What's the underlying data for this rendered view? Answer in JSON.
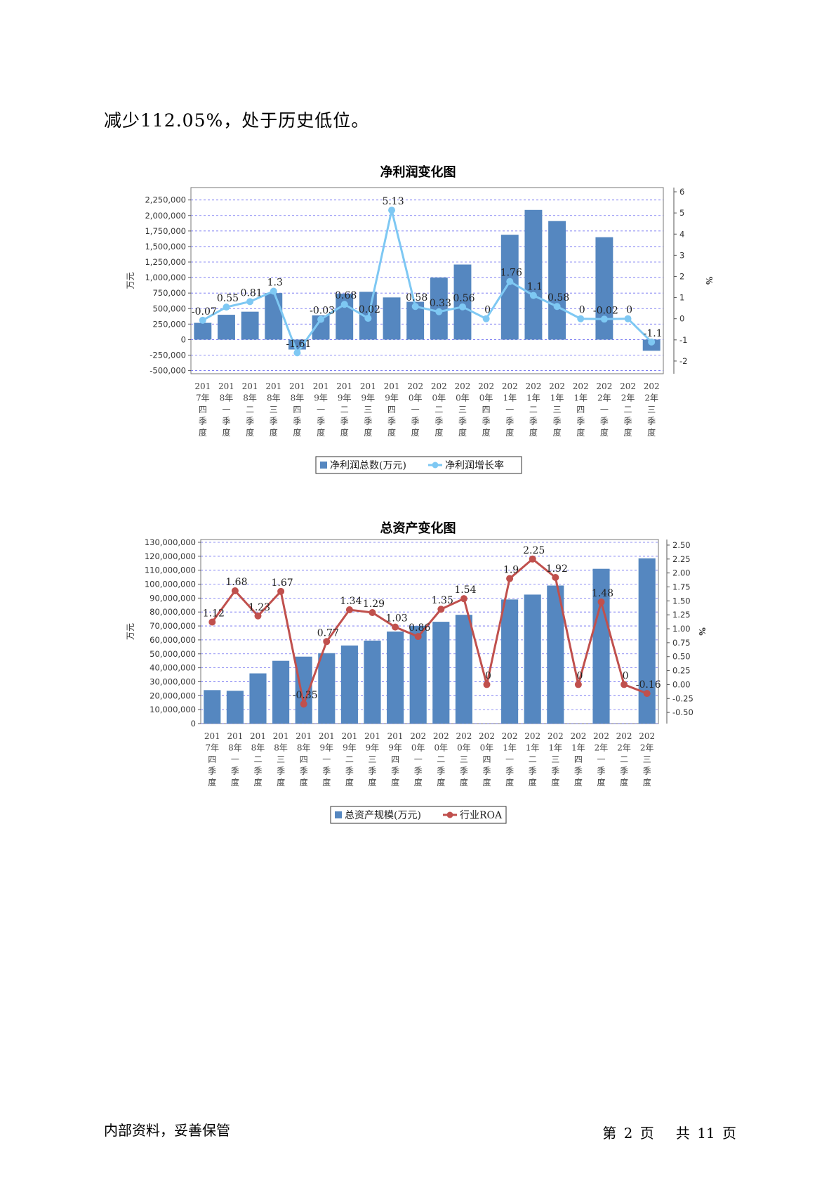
{
  "intro_text": "减少112.05%，处于历史低位。",
  "footer": {
    "left": "内部资料，妥善保管",
    "page_prefix": "第",
    "page_no": "2",
    "page_mid": "页",
    "total_prefix": "共",
    "total_no": "11",
    "page_suffix": "页"
  },
  "chart_data": [
    {
      "type": "bar",
      "title": "净利润变化图",
      "ylabel": "万元",
      "y2label": "%",
      "bar_color": "#5587c0",
      "line_color": "#7ec8f3",
      "categories": [
        [
          "201",
          "7年",
          "四",
          "季",
          "度"
        ],
        [
          "201",
          "8年",
          "一",
          "季",
          "度"
        ],
        [
          "201",
          "8年",
          "二",
          "季",
          "度"
        ],
        [
          "201",
          "8年",
          "三",
          "季",
          "度"
        ],
        [
          "201",
          "8年",
          "四",
          "季",
          "度"
        ],
        [
          "201",
          "9年",
          "一",
          "季",
          "度"
        ],
        [
          "201",
          "9年",
          "二",
          "季",
          "度"
        ],
        [
          "201",
          "9年",
          "三",
          "季",
          "度"
        ],
        [
          "201",
          "9年",
          "四",
          "季",
          "度"
        ],
        [
          "202",
          "0年",
          "一",
          "季",
          "度"
        ],
        [
          "202",
          "0年",
          "二",
          "季",
          "度"
        ],
        [
          "202",
          "0年",
          "三",
          "季",
          "度"
        ],
        [
          "202",
          "0年",
          "四",
          "季",
          "度"
        ],
        [
          "202",
          "1年",
          "一",
          "季",
          "度"
        ],
        [
          "202",
          "1年",
          "二",
          "季",
          "度"
        ],
        [
          "202",
          "1年",
          "三",
          "季",
          "度"
        ],
        [
          "202",
          "1年",
          "四",
          "季",
          "度"
        ],
        [
          "202",
          "2年",
          "一",
          "季",
          "度"
        ],
        [
          "202",
          "2年",
          "二",
          "季",
          "度"
        ],
        [
          "202",
          "2年",
          "三",
          "季",
          "度"
        ]
      ],
      "yticks": [
        -500000,
        -250000,
        0,
        250000,
        500000,
        750000,
        1000000,
        1250000,
        1500000,
        1750000,
        2000000,
        2250000
      ],
      "ytick_labels": [
        "-500,000",
        "-250,000",
        "0",
        "250,000",
        "500,000",
        "750,000",
        "1,000,000",
        "1,250,000",
        "1,500,000",
        "1,750,000",
        "2,000,000",
        "2,250,000"
      ],
      "ylim": [
        -550000,
        2450000
      ],
      "y2ticks": [
        -2,
        -1,
        0,
        1,
        2,
        3,
        4,
        5,
        6
      ],
      "y2tick_labels": [
        "-2",
        "-1",
        "0",
        "1",
        "2",
        "3",
        "4",
        "5",
        "6"
      ],
      "y2lim": [
        -2.6,
        6.2
      ],
      "series": [
        {
          "name": "净利润总数(万元)",
          "kind": "bar",
          "axis": "left",
          "values": [
            270000,
            400000,
            450000,
            750000,
            -160000,
            390000,
            740000,
            770000,
            680000,
            610000,
            1000000,
            1210000,
            0,
            1690000,
            2090000,
            1910000,
            0,
            1650000,
            0,
            -180000
          ]
        },
        {
          "name": "净利润增长率",
          "kind": "line",
          "axis": "right",
          "values": [
            -0.07,
            0.55,
            0.81,
            1.3,
            -1.61,
            -0.03,
            0.68,
            0.02,
            5.13,
            0.58,
            0.33,
            0.56,
            0,
            1.76,
            1.1,
            0.58,
            0,
            -0.02,
            0,
            -1.1
          ],
          "labels": [
            "-0.07",
            "0.55",
            "0.81",
            "1.3",
            "-1.61",
            "-0.03",
            "0.68",
            "0.02",
            "5.13",
            "0.58",
            "0.33",
            "0.56",
            "0",
            "1.76",
            "1.1",
            "0.58",
            "0",
            "-0.02",
            "0",
            "-1.1"
          ]
        }
      ]
    },
    {
      "type": "bar",
      "title": "总资产变化图",
      "ylabel": "万元",
      "y2label": "%",
      "bar_color": "#5587c0",
      "line_color": "#c0504d",
      "categories": [
        [
          "201",
          "7年",
          "四",
          "季",
          "度"
        ],
        [
          "201",
          "8年",
          "一",
          "季",
          "度"
        ],
        [
          "201",
          "8年",
          "二",
          "季",
          "度"
        ],
        [
          "201",
          "8年",
          "三",
          "季",
          "度"
        ],
        [
          "201",
          "8年",
          "四",
          "季",
          "度"
        ],
        [
          "201",
          "9年",
          "一",
          "季",
          "度"
        ],
        [
          "201",
          "9年",
          "二",
          "季",
          "度"
        ],
        [
          "201",
          "9年",
          "三",
          "季",
          "度"
        ],
        [
          "201",
          "9年",
          "四",
          "季",
          "度"
        ],
        [
          "202",
          "0年",
          "一",
          "季",
          "度"
        ],
        [
          "202",
          "0年",
          "二",
          "季",
          "度"
        ],
        [
          "202",
          "0年",
          "三",
          "季",
          "度"
        ],
        [
          "202",
          "0年",
          "四",
          "季",
          "度"
        ],
        [
          "202",
          "1年",
          "一",
          "季",
          "度"
        ],
        [
          "202",
          "1年",
          "二",
          "季",
          "度"
        ],
        [
          "202",
          "1年",
          "三",
          "季",
          "度"
        ],
        [
          "202",
          "1年",
          "四",
          "季",
          "度"
        ],
        [
          "202",
          "2年",
          "一",
          "季",
          "度"
        ],
        [
          "202",
          "2年",
          "二",
          "季",
          "度"
        ],
        [
          "202",
          "2年",
          "三",
          "季",
          "度"
        ]
      ],
      "yticks": [
        0,
        10000000,
        20000000,
        30000000,
        40000000,
        50000000,
        60000000,
        70000000,
        80000000,
        90000000,
        100000000,
        110000000,
        120000000,
        130000000
      ],
      "ytick_labels": [
        "0",
        "10,000,000",
        "20,000,000",
        "30,000,000",
        "40,000,000",
        "50,000,000",
        "60,000,000",
        "70,000,000",
        "80,000,000",
        "90,000,000",
        "100,000,000",
        "110,000,000",
        "120,000,000",
        "130,000,000"
      ],
      "ylim": [
        0,
        132000000
      ],
      "y2ticks": [
        -0.5,
        -0.25,
        0,
        0.25,
        0.5,
        0.75,
        1,
        1.25,
        1.5,
        1.75,
        2,
        2.25,
        2.5
      ],
      "y2tick_labels": [
        "-0.50",
        "-0.25",
        "0.00",
        "0.25",
        "0.50",
        "0.75",
        "1.00",
        "1.25",
        "1.50",
        "1.75",
        "2.00",
        "2.25",
        "2.50"
      ],
      "y2lim": [
        -0.7,
        2.6
      ],
      "series": [
        {
          "name": "总资产规模(万元)",
          "kind": "bar",
          "axis": "left",
          "values": [
            24000000,
            23500000,
            36000000,
            45000000,
            48000000,
            50500000,
            56000000,
            59500000,
            66000000,
            70000000,
            73000000,
            78000000,
            0,
            89000000,
            92500000,
            99000000,
            0,
            111000000,
            0,
            118500000
          ]
        },
        {
          "name": "行业ROA",
          "kind": "line",
          "axis": "right",
          "values": [
            1.12,
            1.68,
            1.23,
            1.67,
            -0.35,
            0.77,
            1.34,
            1.29,
            1.03,
            0.86,
            1.35,
            1.54,
            0,
            1.9,
            2.25,
            1.92,
            0,
            1.48,
            0,
            -0.16
          ],
          "labels": [
            "1.12",
            "1.68",
            "1.23",
            "1.67",
            "-0.35",
            "0.77",
            "1.34",
            "1.29",
            "1.03",
            "0.86",
            "1.35",
            "1.54",
            "0",
            "1.9",
            "2.25",
            "1.92",
            "0",
            "1.48",
            "0",
            "-0.16"
          ]
        }
      ]
    }
  ]
}
